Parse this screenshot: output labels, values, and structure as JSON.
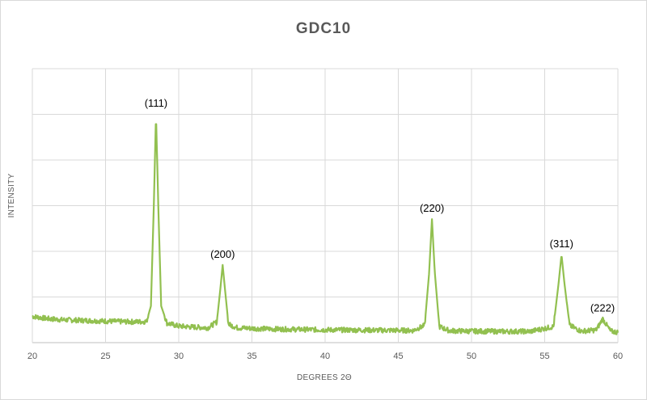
{
  "chart_data": {
    "type": "line",
    "title": "GDC10",
    "xlabel": "DEGREES 2Θ",
    "ylabel": "INTENSITY",
    "xlim": [
      20,
      60
    ],
    "ylim": [
      0,
      100
    ],
    "x_ticks": [
      20,
      25,
      30,
      35,
      40,
      45,
      50,
      55,
      60
    ],
    "y_gridline_count": 7,
    "y_tick_labels_shown": false,
    "grid": true,
    "line_color": "#92c050",
    "series": [
      {
        "x": [
          20,
          21,
          22,
          23,
          24,
          25,
          26,
          27,
          27.8,
          28.1,
          28.3,
          28.45,
          28.6,
          28.8,
          29.2,
          30,
          31,
          32,
          32.6,
          32.85,
          33,
          33.15,
          33.4,
          34,
          36,
          38,
          40,
          42,
          44,
          46,
          46.8,
          47.1,
          47.3,
          47.5,
          47.8,
          48.5,
          50,
          52,
          54,
          55.6,
          55.95,
          56.15,
          56.35,
          56.7,
          57.5,
          58.5,
          58.8,
          58.95,
          59.15,
          59.5,
          60
        ],
        "y": [
          11.5,
          10.5,
          10,
          9.8,
          9.6,
          9.4,
          9.2,
          9.1,
          9.2,
          16,
          60,
          100,
          60,
          16,
          8.5,
          7.2,
          6.8,
          6.5,
          9,
          24,
          34,
          24,
          8,
          6.5,
          6,
          5.8,
          5.6,
          5.5,
          5.4,
          5.3,
          7.5,
          30,
          54,
          30,
          7,
          5.2,
          5,
          4.9,
          4.9,
          7,
          26,
          38.5,
          26,
          7.5,
          5,
          5.5,
          8.5,
          10.5,
          8.5,
          5,
          4.5
        ]
      }
    ],
    "annotations": [
      {
        "text": "(111)",
        "x": 28.45,
        "y": 100
      },
      {
        "text": "(200)",
        "x": 33.0,
        "y": 34
      },
      {
        "text": "(220)",
        "x": 47.3,
        "y": 54
      },
      {
        "text": "(311)",
        "x": 56.15,
        "y": 38.5
      },
      {
        "text": "(222)",
        "x": 58.95,
        "y": 10.5
      }
    ]
  }
}
